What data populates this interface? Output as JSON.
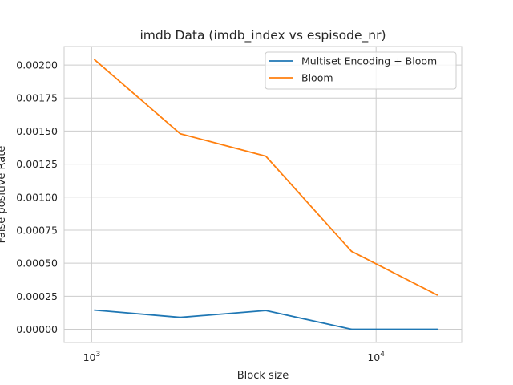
{
  "chart_data": {
    "type": "line",
    "title": "imdb Data (imdb_index vs espisode_nr)",
    "xlabel": "Block size",
    "ylabel": "False positive Rate",
    "xscale": "log",
    "xlim": [
      800,
      20000
    ],
    "ylim": [
      -0.0001,
      0.00214
    ],
    "x": [
      1024,
      2048,
      4096,
      8192,
      16384
    ],
    "xticks": [
      {
        "value": 1000,
        "base": "10",
        "exp": "3"
      },
      {
        "value": 10000,
        "base": "10",
        "exp": "4"
      }
    ],
    "yticks": [
      0.0,
      0.00025,
      0.0005,
      0.00075,
      0.001,
      0.00125,
      0.0015,
      0.00175,
      0.002
    ],
    "ytick_labels": [
      "0.00000",
      "0.00025",
      "0.00050",
      "0.00075",
      "0.00100",
      "0.00125",
      "0.00150",
      "0.00175",
      "0.00200"
    ],
    "grid": true,
    "legend_position": "top-right",
    "series": [
      {
        "name": "Multiset Encoding + Bloom",
        "color": "#1f77b4",
        "values": [
          0.000145,
          9e-05,
          0.000142,
          0.0,
          0.0
        ]
      },
      {
        "name": "Bloom",
        "color": "#ff7f0e",
        "values": [
          0.00204,
          0.00148,
          0.00131,
          0.00059,
          0.00026
        ]
      }
    ]
  }
}
